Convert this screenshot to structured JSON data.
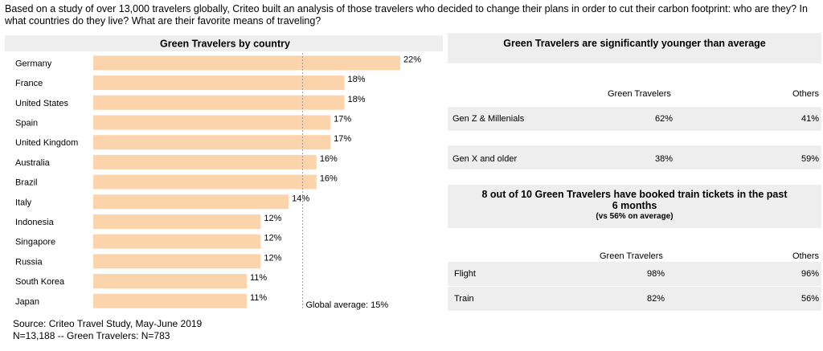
{
  "intro": "Based on a study of over 13,000 travelers globally, Criteo built an analysis of those travelers who decided to change their plans in order to cut their carbon footprint: who are they? In what countries do they live? What are their favorite means of traveling?",
  "chart_data": [
    {
      "type": "bar",
      "orientation": "horizontal",
      "title": "Green Travelers by country",
      "categories": [
        "Germany",
        "France",
        "United States",
        "Spain",
        "United Kingdom",
        "Australia",
        "Brazil",
        "Italy",
        "Indonesia",
        "Singapore",
        "Russia",
        "South Korea",
        "Japan"
      ],
      "values": [
        22,
        18,
        18,
        17,
        17,
        16,
        16,
        14,
        12,
        12,
        12,
        11,
        11
      ],
      "value_labels": [
        "22%",
        "18%",
        "18%",
        "17%",
        "17%",
        "16%",
        "16%",
        "14%",
        "12%",
        "12%",
        "12%",
        "11%",
        "11%"
      ],
      "unit": "%",
      "bar_color": "#fcd4ac",
      "reference_line": {
        "value": 15,
        "label": "Global average: 15%"
      },
      "xlim": [
        0,
        22
      ],
      "grid": false
    },
    {
      "type": "table",
      "title": "Green Travelers are significantly younger than average",
      "columns": [
        "Green Travelers",
        "Others"
      ],
      "rows": [
        {
          "label": "Gen Z & Millenials",
          "values": [
            "62%",
            "41%"
          ]
        },
        {
          "label": "Gen X and older",
          "values": [
            "38%",
            "59%"
          ]
        }
      ]
    },
    {
      "type": "table",
      "title": "8 out of 10 Green Travelers have booked train tickets in the past 6 months",
      "subtitle": "(vs 56% on average)",
      "columns": [
        "Green Travelers",
        "Others"
      ],
      "rows": [
        {
          "label": "Flight",
          "values": [
            "98%",
            "96%"
          ]
        },
        {
          "label": "Train",
          "values": [
            "82%",
            "56%"
          ]
        }
      ]
    }
  ],
  "source": {
    "line1": "Source: Criteo Travel Study, May-June 2019",
    "line2": "N=13,188 -- Green Travelers: N=783"
  },
  "colors": {
    "panel_bg": "#eeeeee",
    "bar": "#fcd4ac",
    "avg_line": "#999999"
  }
}
